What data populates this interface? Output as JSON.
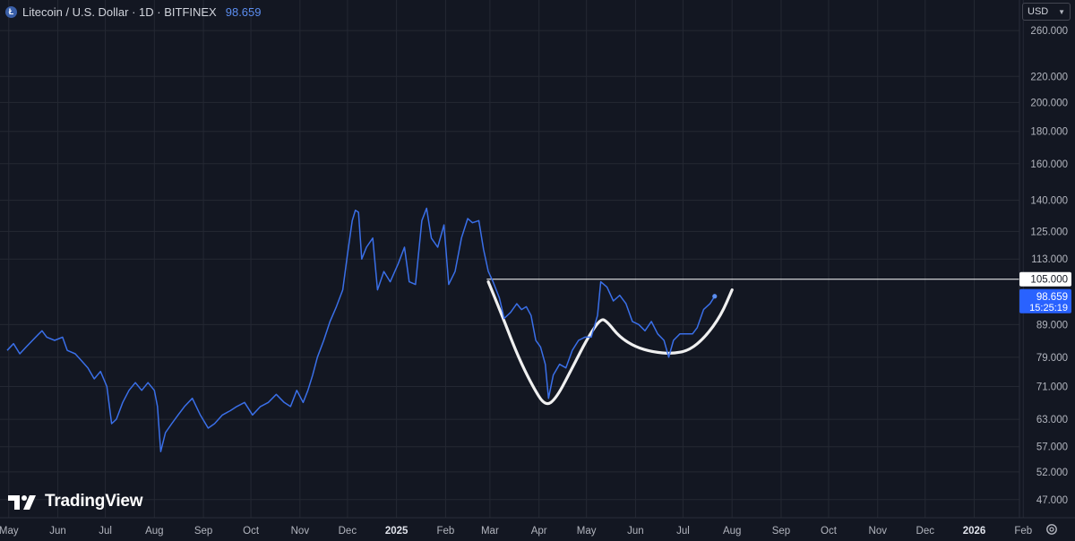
{
  "header": {
    "symbol_glyph": "Ł",
    "title": "Litecoin / U.S. Dollar · 1D · BITFINEX",
    "last_price": "98.659"
  },
  "currency_selector": {
    "label": "USD"
  },
  "logo": {
    "text": "TradingView"
  },
  "price_axis": {
    "ticks": [
      "260.000",
      "220.000",
      "200.000",
      "180.000",
      "160.000",
      "140.000",
      "125.000",
      "113.000",
      "89.000",
      "79.000",
      "71.000",
      "63.000",
      "57.000",
      "52.000",
      "47.000"
    ]
  },
  "time_axis": {
    "ticks": [
      {
        "label": "May",
        "bold": false
      },
      {
        "label": "Jun",
        "bold": false
      },
      {
        "label": "Jul",
        "bold": false
      },
      {
        "label": "Aug",
        "bold": false
      },
      {
        "label": "Sep",
        "bold": false
      },
      {
        "label": "Oct",
        "bold": false
      },
      {
        "label": "Nov",
        "bold": false
      },
      {
        "label": "Dec",
        "bold": false
      },
      {
        "label": "2025",
        "bold": true
      },
      {
        "label": "Feb",
        "bold": false
      },
      {
        "label": "Mar",
        "bold": false
      },
      {
        "label": "Apr",
        "bold": false
      },
      {
        "label": "May",
        "bold": false
      },
      {
        "label": "Jun",
        "bold": false
      },
      {
        "label": "Jul",
        "bold": false
      },
      {
        "label": "Aug",
        "bold": false
      },
      {
        "label": "Sep",
        "bold": false
      },
      {
        "label": "Oct",
        "bold": false
      },
      {
        "label": "Nov",
        "bold": false
      },
      {
        "label": "Dec",
        "bold": false
      },
      {
        "label": "2026",
        "bold": true
      },
      {
        "label": "Feb",
        "bold": false
      }
    ]
  },
  "price_labels": {
    "horizontal_line": "105.000",
    "current_price": "98.659",
    "countdown": "15:25:19"
  },
  "colors": {
    "background": "#131722",
    "grid": "#242833",
    "series": "#3a6fe8",
    "drawing": "#ffffff",
    "current_label": "#2962ff"
  },
  "chart_data": {
    "type": "line",
    "title": "Litecoin / U.S. Dollar · 1D · BITFINEX",
    "scale": "log",
    "ylim": [
      44,
      285
    ],
    "x_range": [
      "2024-04-30",
      "2026-02-28"
    ],
    "grid": true,
    "series": [
      {
        "points": [
          [
            "2024-04-30",
            81
          ],
          [
            "2024-05-04",
            83
          ],
          [
            "2024-05-08",
            80
          ],
          [
            "2024-05-12",
            82
          ],
          [
            "2024-05-16",
            84
          ],
          [
            "2024-05-20",
            86
          ],
          [
            "2024-05-22",
            87
          ],
          [
            "2024-05-25",
            85
          ],
          [
            "2024-05-30",
            84
          ],
          [
            "2024-06-04",
            85
          ],
          [
            "2024-06-07",
            81
          ],
          [
            "2024-06-12",
            80
          ],
          [
            "2024-06-16",
            78
          ],
          [
            "2024-06-20",
            76
          ],
          [
            "2024-06-24",
            73
          ],
          [
            "2024-06-28",
            75
          ],
          [
            "2024-07-02",
            71
          ],
          [
            "2024-07-05",
            62
          ],
          [
            "2024-07-08",
            63
          ],
          [
            "2024-07-12",
            67
          ],
          [
            "2024-07-16",
            70
          ],
          [
            "2024-07-20",
            72
          ],
          [
            "2024-07-24",
            70
          ],
          [
            "2024-07-28",
            72
          ],
          [
            "2024-08-01",
            70
          ],
          [
            "2024-08-03",
            66
          ],
          [
            "2024-08-05",
            56
          ],
          [
            "2024-08-08",
            60
          ],
          [
            "2024-08-12",
            62
          ],
          [
            "2024-08-16",
            64
          ],
          [
            "2024-08-20",
            66
          ],
          [
            "2024-08-25",
            68
          ],
          [
            "2024-08-30",
            64
          ],
          [
            "2024-09-04",
            61
          ],
          [
            "2024-09-08",
            62
          ],
          [
            "2024-09-13",
            64
          ],
          [
            "2024-09-18",
            65
          ],
          [
            "2024-09-22",
            66
          ],
          [
            "2024-09-27",
            67
          ],
          [
            "2024-10-02",
            64
          ],
          [
            "2024-10-07",
            66
          ],
          [
            "2024-10-12",
            67
          ],
          [
            "2024-10-17",
            69
          ],
          [
            "2024-10-22",
            67
          ],
          [
            "2024-10-26",
            66
          ],
          [
            "2024-10-30",
            70
          ],
          [
            "2024-11-03",
            67
          ],
          [
            "2024-11-06",
            70
          ],
          [
            "2024-11-09",
            74
          ],
          [
            "2024-11-12",
            79
          ],
          [
            "2024-11-16",
            84
          ],
          [
            "2024-11-20",
            90
          ],
          [
            "2024-11-24",
            95
          ],
          [
            "2024-11-28",
            101
          ],
          [
            "2024-12-01",
            115
          ],
          [
            "2024-12-04",
            130
          ],
          [
            "2024-12-06",
            135
          ],
          [
            "2024-12-08",
            134
          ],
          [
            "2024-12-10",
            113
          ],
          [
            "2024-12-13",
            118
          ],
          [
            "2024-12-17",
            122
          ],
          [
            "2024-12-20",
            101
          ],
          [
            "2024-12-24",
            108
          ],
          [
            "2024-12-28",
            104
          ],
          [
            "2025-01-02",
            111
          ],
          [
            "2025-01-06",
            118
          ],
          [
            "2025-01-09",
            104
          ],
          [
            "2025-01-13",
            103
          ],
          [
            "2025-01-17",
            130
          ],
          [
            "2025-01-20",
            136
          ],
          [
            "2025-01-23",
            122
          ],
          [
            "2025-01-27",
            118
          ],
          [
            "2025-01-31",
            128
          ],
          [
            "2025-02-03",
            103
          ],
          [
            "2025-02-07",
            108
          ],
          [
            "2025-02-11",
            122
          ],
          [
            "2025-02-15",
            131
          ],
          [
            "2025-02-18",
            129
          ],
          [
            "2025-02-22",
            130
          ],
          [
            "2025-02-25",
            117
          ],
          [
            "2025-02-28",
            108
          ],
          [
            "2025-03-03",
            104
          ],
          [
            "2025-03-07",
            98
          ],
          [
            "2025-03-10",
            91
          ],
          [
            "2025-03-14",
            93
          ],
          [
            "2025-03-18",
            96
          ],
          [
            "2025-03-21",
            94
          ],
          [
            "2025-03-24",
            95
          ],
          [
            "2025-03-27",
            92
          ],
          [
            "2025-03-30",
            84
          ],
          [
            "2025-04-02",
            82
          ],
          [
            "2025-04-05",
            77
          ],
          [
            "2025-04-07",
            68
          ],
          [
            "2025-04-10",
            74
          ],
          [
            "2025-04-14",
            77
          ],
          [
            "2025-04-18",
            76
          ],
          [
            "2025-04-22",
            81
          ],
          [
            "2025-04-26",
            84
          ],
          [
            "2025-04-30",
            85
          ],
          [
            "2025-05-04",
            85
          ],
          [
            "2025-05-08",
            92
          ],
          [
            "2025-05-10",
            104
          ],
          [
            "2025-05-14",
            102
          ],
          [
            "2025-05-18",
            97
          ],
          [
            "2025-05-22",
            99
          ],
          [
            "2025-05-26",
            96
          ],
          [
            "2025-05-30",
            90
          ],
          [
            "2025-06-03",
            89
          ],
          [
            "2025-06-07",
            87
          ],
          [
            "2025-06-11",
            90
          ],
          [
            "2025-06-15",
            86
          ],
          [
            "2025-06-19",
            84
          ],
          [
            "2025-06-22",
            79
          ],
          [
            "2025-06-25",
            84
          ],
          [
            "2025-06-29",
            86
          ],
          [
            "2025-07-03",
            86
          ],
          [
            "2025-07-07",
            86
          ],
          [
            "2025-07-10",
            88
          ],
          [
            "2025-07-14",
            94
          ],
          [
            "2025-07-18",
            96
          ],
          [
            "2025-07-21",
            98.659
          ]
        ]
      }
    ],
    "annotations": {
      "horizontal_line": {
        "start": "2025-02-27",
        "value": 105
      },
      "freehand_pattern": [
        [
          "2025-02-28",
          104
        ],
        [
          "2025-03-08",
          93
        ],
        [
          "2025-03-18",
          80
        ],
        [
          "2025-03-28",
          71
        ],
        [
          "2025-04-05",
          66
        ],
        [
          "2025-04-12",
          68
        ],
        [
          "2025-04-22",
          76
        ],
        [
          "2025-05-02",
          85
        ],
        [
          "2025-05-10",
          91
        ],
        [
          "2025-05-14",
          90
        ],
        [
          "2025-05-22",
          85
        ],
        [
          "2025-06-01",
          82
        ],
        [
          "2025-06-12",
          80.5
        ],
        [
          "2025-06-24",
          80
        ],
        [
          "2025-07-05",
          81
        ],
        [
          "2025-07-15",
          85
        ],
        [
          "2025-07-25",
          92
        ],
        [
          "2025-08-01",
          101
        ]
      ]
    }
  }
}
